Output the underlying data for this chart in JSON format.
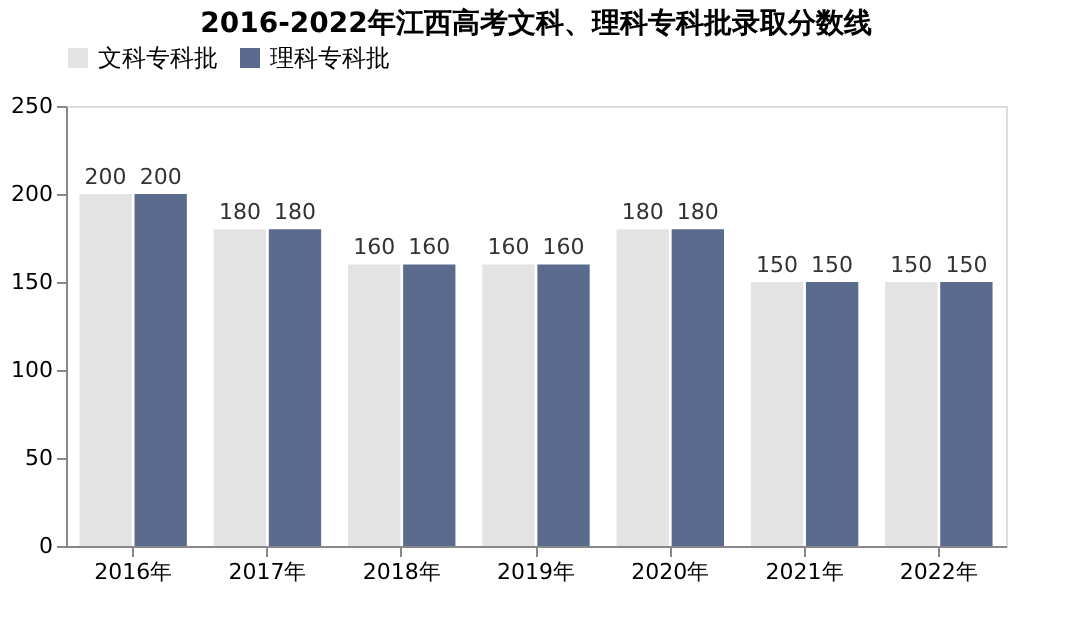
{
  "chart_data": {
    "type": "bar",
    "title": "2016-2022年江西高考文科、理科专科批录取分数线",
    "categories": [
      "2016年",
      "2017年",
      "2018年",
      "2019年",
      "2020年",
      "2021年",
      "2022年"
    ],
    "series": [
      {
        "name": "文科专科批",
        "color": "#e3e3e3",
        "values": [
          200,
          180,
          160,
          160,
          180,
          150,
          150
        ]
      },
      {
        "name": "理科专科批",
        "color": "#5a6b8e",
        "values": [
          200,
          180,
          160,
          160,
          180,
          150,
          150
        ]
      }
    ],
    "ylim": [
      0,
      250
    ],
    "yticks": [
      0,
      50,
      100,
      150,
      200,
      250
    ],
    "grid": false,
    "legend": "top",
    "data_labels": true
  }
}
